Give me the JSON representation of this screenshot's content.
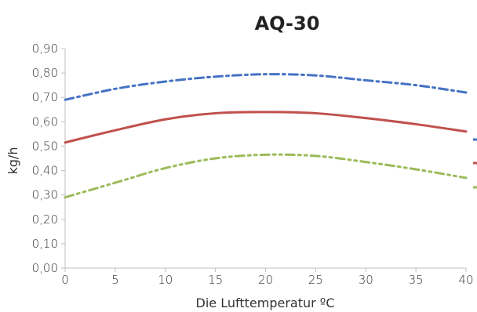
{
  "chart_data": {
    "type": "line",
    "title": "AQ-30",
    "xlabel": "Die Lufttemperatur ºC",
    "ylabel": "kg/h",
    "xlim": [
      0,
      40
    ],
    "ylim": [
      0,
      0.9
    ],
    "x_ticks": [
      0,
      5,
      10,
      15,
      20,
      25,
      30,
      35,
      40
    ],
    "x_tick_labels": [
      "0",
      "5",
      "10",
      "15",
      "20",
      "25",
      "30",
      "35",
      "40"
    ],
    "y_ticks": [
      0,
      0.1,
      0.2,
      0.3,
      0.4,
      0.5,
      0.6,
      0.7,
      0.8,
      0.9
    ],
    "y_tick_labels": [
      "0,00",
      "0,10",
      "0,20",
      "0,30",
      "0,40",
      "0,50",
      "0,60",
      "0,70",
      "0,80",
      "0,90"
    ],
    "grid": false,
    "legend": "right (cropped, labels not visible)",
    "x": [
      0,
      5,
      10,
      15,
      20,
      25,
      30,
      35,
      40
    ],
    "series": [
      {
        "values": [
          0.69,
          0.735,
          0.765,
          0.785,
          0.795,
          0.79,
          0.77,
          0.75,
          0.72
        ],
        "color": "#4472c4",
        "dash": "dash-dot"
      },
      {
        "values": [
          0.515,
          0.565,
          0.61,
          0.635,
          0.64,
          0.635,
          0.615,
          0.59,
          0.56
        ],
        "color": "#c0504d",
        "dash": "solid"
      },
      {
        "values": [
          0.29,
          0.35,
          0.41,
          0.45,
          0.465,
          0.46,
          0.435,
          0.405,
          0.37
        ],
        "color": "#9bbb59",
        "dash": "dash-dot-dot"
      }
    ]
  }
}
